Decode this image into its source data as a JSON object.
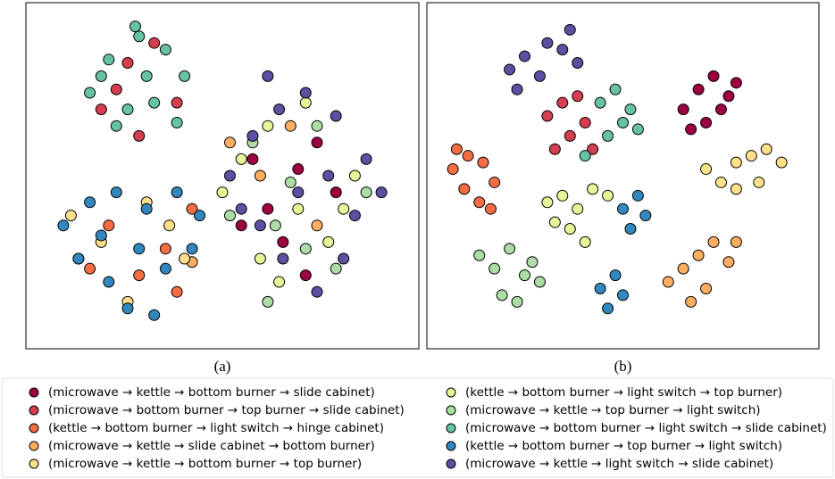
{
  "chart_data": [
    {
      "type": "scatter",
      "caption": "(a)",
      "xlim": [
        0,
        100
      ],
      "ylim": [
        0,
        100
      ],
      "series": [
        {
          "name": "(microwave → kettle → bottom burner → slide cabinet)",
          "color": "#9e0142",
          "x": [
            62,
            70,
            55,
            75,
            80,
            66,
            58,
            72
          ],
          "values": [
            40,
            52,
            35,
            60,
            45,
            30,
            55,
            20
          ]
        },
        {
          "name": "(microwave → bottom burner → top burner → slide cabinet)",
          "color": "#d53e4f",
          "x": [
            18,
            25,
            32,
            22,
            38,
            28
          ],
          "values": [
            70,
            84,
            90,
            76,
            72,
            62
          ]
        },
        {
          "name": "(kettle → bottom burner → light switch → hinge cabinet)",
          "color": "#f46d43",
          "x": [
            20,
            35,
            28,
            42,
            15,
            38
          ],
          "values": [
            35,
            28,
            20,
            40,
            22,
            15
          ]
        },
        {
          "name": "(microwave → kettle → slide cabinet → bottom burner)",
          "color": "#fdae61",
          "x": [
            60,
            75,
            42,
            52,
            68
          ],
          "values": [
            50,
            35,
            24,
            60,
            65
          ]
        },
        {
          "name": "(microwave → kettle → bottom burner → top burner)",
          "color": "#fee08b",
          "x": [
            10,
            18,
            30,
            40,
            25,
            12,
            36
          ],
          "values": [
            38,
            30,
            42,
            25,
            12,
            25,
            35
          ]
        },
        {
          "name": "(kettle → bottom burner → light switch → top burner)",
          "color": "#e6f598",
          "x": [
            55,
            62,
            70,
            78,
            85,
            60,
            72,
            82,
            65,
            50
          ],
          "values": [
            55,
            65,
            40,
            30,
            50,
            25,
            72,
            40,
            18,
            45
          ]
        },
        {
          "name": "(microwave → kettle → top burner → light switch)",
          "color": "#abdda4",
          "x": [
            58,
            68,
            75,
            88,
            64,
            80,
            52,
            72,
            62
          ],
          "values": [
            60,
            48,
            65,
            45,
            35,
            22,
            38,
            28,
            12
          ]
        },
        {
          "name": "(microwave → bottom burner → light switch → slide cabinet)",
          "color": "#66c2a5",
          "x": [
            15,
            20,
            28,
            35,
            40,
            25,
            32,
            22,
            30,
            38,
            18,
            27
          ],
          "values": [
            75,
            85,
            92,
            88,
            80,
            70,
            72,
            65,
            80,
            66,
            80,
            95
          ]
        },
        {
          "name": "(kettle → bottom burner → top burner → light switch)",
          "color": "#3288bd",
          "x": [
            8,
            15,
            22,
            30,
            38,
            44,
            12,
            20,
            28,
            35,
            42,
            25,
            18,
            32
          ],
          "values": [
            35,
            42,
            45,
            40,
            45,
            38,
            25,
            18,
            28,
            22,
            28,
            10,
            32,
            8
          ]
        },
        {
          "name": "(microwave → kettle → light switch → slide cabinet)",
          "color": "#5e4fa2",
          "x": [
            52,
            58,
            65,
            72,
            80,
            88,
            92,
            60,
            70,
            78,
            85,
            55,
            66,
            75,
            62,
            82
          ],
          "values": [
            50,
            62,
            70,
            75,
            68,
            55,
            45,
            35,
            45,
            50,
            38,
            40,
            25,
            15,
            80,
            25
          ]
        }
      ]
    },
    {
      "type": "scatter",
      "caption": "(b)",
      "xlim": [
        0,
        100
      ],
      "ylim": [
        0,
        100
      ],
      "series": [
        {
          "x": [
            66,
            70,
            74,
            78,
            72,
            76,
            68,
            80
          ],
          "values": [
            70,
            76,
            80,
            74,
            66,
            70,
            64,
            78
          ]
        },
        {
          "x": [
            30,
            34,
            38,
            36,
            42,
            32,
            40
          ],
          "values": [
            68,
            72,
            74,
            62,
            58,
            58,
            66
          ]
        },
        {
          "x": [
            5,
            9,
            13,
            16,
            8,
            12,
            15,
            6
          ],
          "values": [
            52,
            56,
            54,
            48,
            46,
            42,
            40,
            58
          ]
        },
        {
          "x": [
            62,
            66,
            70,
            74,
            78,
            68,
            72,
            80
          ],
          "values": [
            18,
            22,
            26,
            30,
            24,
            12,
            16,
            30
          ]
        },
        {
          "x": [
            72,
            76,
            80,
            84,
            88,
            92,
            80,
            86
          ],
          "values": [
            52,
            48,
            54,
            56,
            58,
            54,
            46,
            48
          ]
        },
        {
          "x": [
            30,
            34,
            38,
            42,
            46,
            36,
            40,
            32
          ],
          "values": [
            42,
            44,
            40,
            46,
            44,
            34,
            30,
            36
          ]
        },
        {
          "x": [
            12,
            16,
            20,
            24,
            28,
            18,
            22,
            26
          ],
          "values": [
            26,
            22,
            28,
            20,
            18,
            14,
            12,
            24
          ]
        },
        {
          "x": [
            44,
            48,
            52,
            46,
            50,
            40,
            54
          ],
          "values": [
            72,
            76,
            70,
            62,
            66,
            56,
            64
          ]
        },
        {
          "x": [
            50,
            54,
            56,
            52,
            44,
            48,
            46,
            50
          ],
          "values": [
            40,
            44,
            38,
            34,
            16,
            20,
            10,
            14
          ]
        },
        {
          "x": [
            20,
            24,
            28,
            30,
            34,
            36,
            38,
            22
          ],
          "values": [
            82,
            86,
            80,
            90,
            88,
            94,
            84,
            76
          ]
        }
      ]
    }
  ]
}
